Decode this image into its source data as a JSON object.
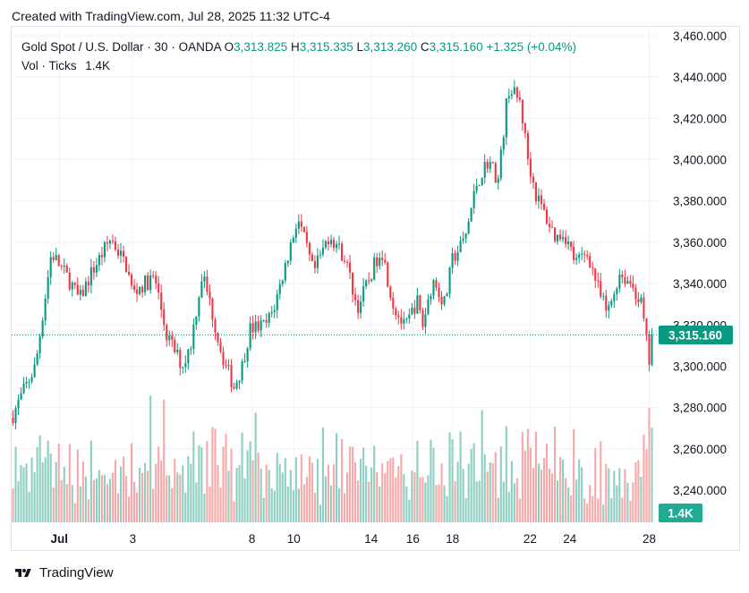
{
  "header": {
    "created_text": "Created with TradingView.com, Jul 28, 2025 11:32 UTC-4"
  },
  "legend": {
    "symbol": "Gold Spot / U.S. Dollar · 30 · OANDA",
    "o_label": "O",
    "o_value": "3,313.825",
    "h_label": "H",
    "h_value": "3,315.335",
    "l_label": "L",
    "l_value": "3,313.260",
    "c_label": "C",
    "c_value": "3,315.160",
    "change": "+1.325 (+0.04%)"
  },
  "volume_legend": {
    "label": "Vol · Ticks",
    "value": "1.4K"
  },
  "price_badge": "3,315.160",
  "volume_badge": "1.4K",
  "footer": {
    "brand": "TradingView"
  },
  "colors": {
    "up": "#089981",
    "down": "#f23645",
    "vol_up": "#8fcfc2",
    "vol_down": "#f7a9a9",
    "grid": "#f0f3fa",
    "text": "#131722"
  },
  "chart_data": {
    "type": "candlestick",
    "ylim": [
      3232,
      3465
    ],
    "yticks": [
      "3,460.000",
      "3,440.000",
      "3,420.000",
      "3,400.000",
      "3,380.000",
      "3,360.000",
      "3,340.000",
      "3,320.000",
      "3,300.000",
      "3,280.000",
      "3,260.000",
      "3,240.000"
    ],
    "ytick_values": [
      3460,
      3440,
      3420,
      3400,
      3380,
      3360,
      3340,
      3320,
      3300,
      3280,
      3260,
      3240
    ],
    "xticks": [
      "Jul",
      "3",
      "8",
      "10",
      "14",
      "16",
      "18",
      "22",
      "24",
      "28"
    ],
    "xtick_values": [
      1.2,
      3.05,
      6.05,
      7.1,
      9.05,
      10.1,
      11.1,
      13.05,
      14.05,
      16.05
    ],
    "last_close": 3315.16,
    "close_path": {
      "description": "approximate path of 30-minute closes (x in trading days from Jun 30 start)",
      "x": [
        0,
        0.3,
        0.6,
        1.0,
        1.5,
        1.7,
        2.0,
        2.5,
        2.9,
        3.05,
        3.2,
        3.6,
        3.9,
        4.3,
        4.5,
        4.8,
        5.0,
        5.3,
        5.6,
        5.8,
        6.0,
        6.4,
        6.6,
        6.85,
        7.2,
        7.6,
        8.0,
        8.4,
        8.7,
        9.0,
        9.3,
        9.6,
        9.9,
        10.2,
        10.35,
        10.6,
        10.9,
        11.1,
        11.4,
        11.7,
        12.0,
        12.25,
        12.5,
        12.8,
        13.0,
        13.2,
        13.5,
        13.7,
        13.9,
        14.2,
        14.5,
        14.8,
        15.0,
        15.3,
        15.6,
        15.85,
        16.05,
        16.15
      ],
      "y": [
        3275,
        3288,
        3300,
        3355,
        3340,
        3332,
        3345,
        3362,
        3348,
        3335,
        3338,
        3343,
        3315,
        3300,
        3310,
        3345,
        3330,
        3305,
        3290,
        3300,
        3318,
        3320,
        3328,
        3346,
        3372,
        3345,
        3364,
        3352,
        3328,
        3342,
        3358,
        3330,
        3318,
        3332,
        3320,
        3342,
        3330,
        3352,
        3361,
        3388,
        3400,
        3390,
        3435,
        3428,
        3400,
        3383,
        3370,
        3362,
        3365,
        3350,
        3355,
        3335,
        3325,
        3345,
        3340,
        3330,
        3302,
        3315.16
      ]
    },
    "volume_ylim_k": [
      0,
      9.0
    ],
    "series": [
      {
        "name": "Vol · Ticks",
        "last": "1.4K"
      }
    ]
  }
}
